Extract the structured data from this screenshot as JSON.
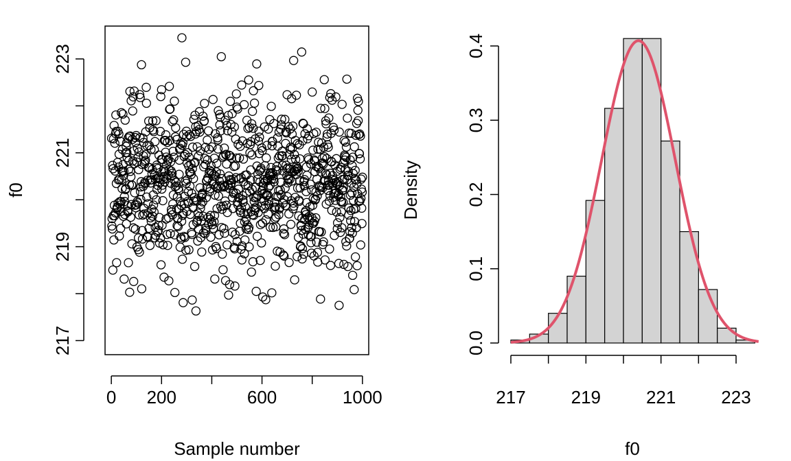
{
  "chart_data": [
    {
      "type": "scatter",
      "title": "",
      "xlabel": "Sample number",
      "ylabel": "f0",
      "xlim": [
        -25,
        1025
      ],
      "ylim": [
        216.7,
        223.7
      ],
      "x_ticks": [
        0,
        200,
        600,
        1000
      ],
      "x_tick_labels": [
        "0",
        "200",
        "600",
        "1000"
      ],
      "x_minor_ticks": [
        0,
        200,
        400,
        600,
        800,
        1000
      ],
      "y_ticks": [
        217,
        219,
        221,
        223
      ],
      "y_tick_labels": [
        "217",
        "219",
        "221",
        "223"
      ],
      "y_minor_ticks": [
        217,
        218,
        219,
        220,
        221,
        222,
        223
      ],
      "n_points": 1000,
      "point_style": "open circle",
      "points_distribution": {
        "mean": 220.4,
        "sd": 0.98
      },
      "grid": false
    },
    {
      "type": "bar",
      "subtype": "histogram",
      "title": "",
      "xlabel": "f0",
      "ylabel": "Density",
      "bin_edges": [
        217.0,
        217.5,
        218.0,
        218.5,
        219.0,
        219.5,
        220.0,
        220.5,
        221.0,
        221.5,
        222.0,
        222.5,
        223.0,
        223.5
      ],
      "values": [
        0.004,
        0.012,
        0.04,
        0.09,
        0.192,
        0.316,
        0.41,
        0.41,
        0.272,
        0.15,
        0.072,
        0.02,
        0.004
      ],
      "density_curve": {
        "mean": 220.4,
        "sd": 0.98,
        "color": "#df536b"
      },
      "bar_fill": "#d3d3d3",
      "xlim": [
        217.0,
        223.6
      ],
      "ylim": [
        0,
        0.42
      ],
      "x_ticks": [
        217,
        219,
        221,
        223
      ],
      "x_tick_labels": [
        "217",
        "219",
        "221",
        "223"
      ],
      "x_minor_ticks": [
        217,
        218,
        219,
        220,
        221,
        222,
        223
      ],
      "y_ticks": [
        0.0,
        0.1,
        0.2,
        0.3,
        0.4
      ],
      "y_tick_labels": [
        "0.0",
        "0.1",
        "0.2",
        "0.3",
        "0.4"
      ],
      "grid": false
    }
  ]
}
